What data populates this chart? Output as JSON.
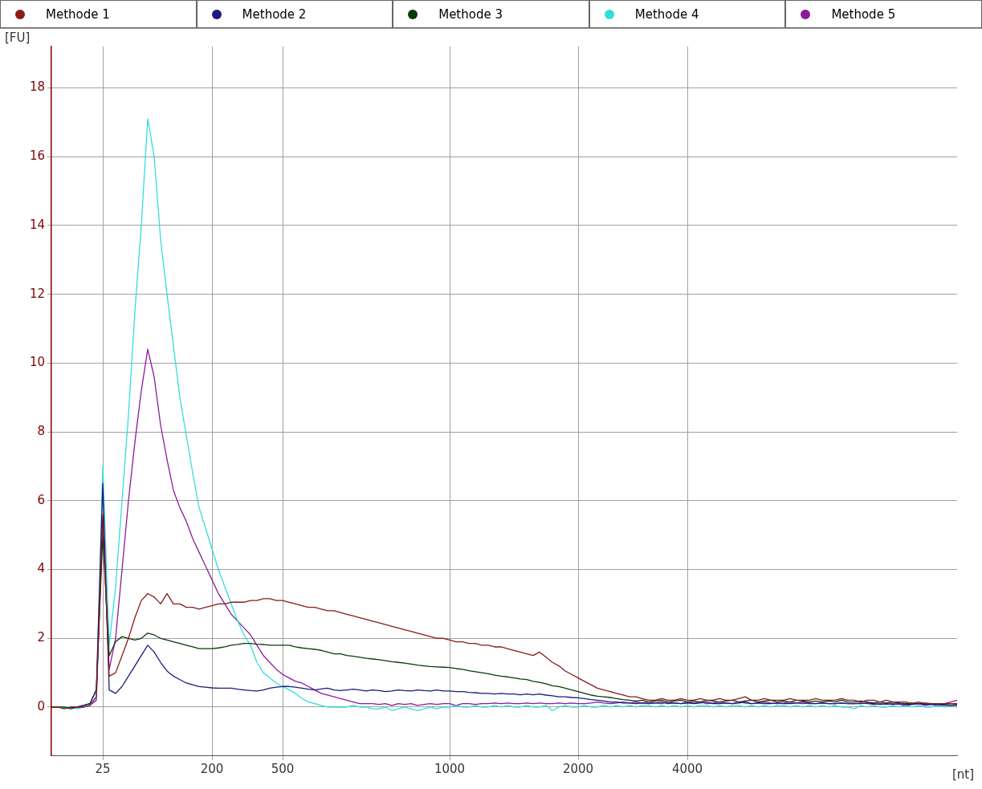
{
  "chart_data": {
    "type": "line",
    "xlabel": "[nt]",
    "ylabel": "[FU]",
    "legend": "top",
    "grid": true,
    "marker": "none",
    "line_style": "solid",
    "ylim": [
      -1.4,
      19.2
    ],
    "yticks": [
      0,
      2,
      4,
      6,
      8,
      10,
      12,
      14,
      16,
      18
    ],
    "categories": [
      null,
      null,
      null,
      null,
      null,
      null,
      null,
      null,
      "25",
      null,
      null,
      null,
      null,
      null,
      null,
      null,
      null,
      null,
      null,
      null,
      null,
      null,
      null,
      null,
      null,
      "200",
      null,
      null,
      null,
      null,
      null,
      null,
      null,
      null,
      null,
      null,
      "500",
      null,
      null,
      null,
      null,
      null,
      null,
      null,
      null,
      null,
      null,
      null,
      null,
      null,
      null,
      null,
      null,
      null,
      null,
      null,
      null,
      null,
      null,
      null,
      null,
      null,
      "1000",
      null,
      null,
      null,
      null,
      null,
      null,
      null,
      null,
      null,
      null,
      null,
      null,
      null,
      null,
      null,
      null,
      null,
      null,
      null,
      "2000",
      null,
      null,
      null,
      null,
      null,
      null,
      null,
      null,
      null,
      null,
      null,
      null,
      null,
      null,
      null,
      null,
      "4000",
      null,
      null,
      null,
      null,
      null,
      null,
      null,
      null,
      null,
      null,
      null,
      null,
      null,
      null,
      null,
      null,
      null,
      null,
      null,
      null,
      null,
      null,
      null,
      null,
      null,
      null,
      null,
      null,
      null,
      null,
      null,
      null,
      null,
      null,
      null,
      null,
      null,
      null,
      null,
      null,
      null,
      null
    ],
    "series": [
      {
        "name": "Methode 1",
        "color": "#8b1a1a",
        "values": [
          0,
          0,
          -0.05,
          0,
          0,
          0,
          0.05,
          0.3,
          5.6,
          0.9,
          1,
          1.5,
          2,
          2.6,
          3.1,
          3.3,
          3.2,
          3,
          3.3,
          3,
          3,
          2.9,
          2.9,
          2.85,
          2.9,
          2.95,
          3,
          3,
          3.05,
          3.05,
          3.05,
          3.1,
          3.1,
          3.15,
          3.15,
          3.1,
          3.1,
          3.05,
          3,
          2.95,
          2.9,
          2.9,
          2.85,
          2.8,
          2.8,
          2.75,
          2.7,
          2.65,
          2.6,
          2.55,
          2.5,
          2.45,
          2.4,
          2.35,
          2.3,
          2.25,
          2.2,
          2.15,
          2.1,
          2.05,
          2,
          2,
          1.95,
          1.9,
          1.9,
          1.85,
          1.85,
          1.8,
          1.8,
          1.75,
          1.75,
          1.7,
          1.65,
          1.6,
          1.55,
          1.5,
          1.6,
          1.45,
          1.3,
          1.2,
          1.05,
          0.95,
          0.85,
          0.75,
          0.65,
          0.55,
          0.5,
          0.45,
          0.4,
          0.35,
          0.3,
          0.3,
          0.25,
          0.2,
          0.2,
          0.25,
          0.2,
          0.2,
          0.25,
          0.2,
          0.2,
          0.25,
          0.2,
          0.2,
          0.25,
          0.2,
          0.2,
          0.25,
          0.3,
          0.2,
          0.2,
          0.25,
          0.2,
          0.2,
          0.2,
          0.25,
          0.2,
          0.2,
          0.2,
          0.25,
          0.2,
          0.2,
          0.2,
          0.25,
          0.2,
          0.2,
          0.15,
          0.2,
          0.2,
          0.15,
          0.2,
          0.15,
          0.15,
          0.15,
          0.1,
          0.15,
          0.1,
          0.1,
          0.1,
          0.1,
          0.1,
          0.1
        ]
      },
      {
        "name": "Methode 2",
        "color": "#1a1a80",
        "values": [
          null,
          null,
          null,
          0,
          0,
          0.05,
          0.1,
          0.5,
          6.5,
          0.5,
          0.4,
          0.6,
          0.9,
          1.2,
          1.5,
          1.8,
          1.6,
          1.3,
          1.05,
          0.9,
          0.8,
          0.7,
          0.65,
          0.6,
          0.58,
          0.56,
          0.55,
          0.55,
          0.55,
          0.52,
          0.5,
          0.48,
          0.47,
          0.5,
          0.55,
          0.58,
          0.6,
          0.6,
          0.58,
          0.55,
          0.52,
          0.5,
          0.53,
          0.55,
          0.5,
          0.48,
          0.5,
          0.52,
          0.5,
          0.47,
          0.5,
          0.48,
          0.45,
          0.47,
          0.5,
          0.48,
          0.47,
          0.5,
          0.48,
          0.47,
          0.5,
          0.47,
          0.47,
          0.45,
          0.45,
          0.43,
          0.42,
          0.4,
          0.4,
          0.38,
          0.4,
          0.38,
          0.38,
          0.36,
          0.38,
          0.36,
          0.38,
          0.35,
          0.33,
          0.3,
          0.3,
          0.28,
          0.27,
          0.25,
          0.22,
          0.2,
          0.18,
          0.15,
          0.15,
          0.12,
          0.12,
          0.1,
          0.12,
          0.1,
          0.12,
          0.15,
          0.1,
          0.12,
          0.1,
          0.12,
          0.1,
          0.12,
          0.15,
          0.1,
          0.1,
          0.12,
          0.1,
          0.12,
          0.15,
          0.1,
          0.12,
          0.1,
          0.1,
          0.12,
          0.1,
          0.1,
          0.12,
          0.15,
          0.1,
          0.1,
          0.12,
          0.1,
          0.1,
          0.12,
          0.1,
          0.1,
          0.1,
          0.12,
          0.1,
          0.08,
          0.1,
          0.08,
          0.1,
          0.08,
          0.08,
          0.1,
          0.08,
          0.08,
          0.08,
          0.05,
          0.05,
          0.05
        ]
      },
      {
        "name": "Methode 3",
        "color": "#0a3a0a",
        "values": [
          0,
          0,
          0,
          -0.05,
          0,
          0.05,
          0.1,
          0.5,
          5,
          1.5,
          1.9,
          2.05,
          2,
          1.95,
          2,
          2.15,
          2.1,
          2,
          1.95,
          1.9,
          1.85,
          1.8,
          1.75,
          1.7,
          1.7,
          1.7,
          1.72,
          1.75,
          1.8,
          1.82,
          1.85,
          1.85,
          1.83,
          1.82,
          1.8,
          1.8,
          1.8,
          1.8,
          1.75,
          1.72,
          1.7,
          1.68,
          1.65,
          1.6,
          1.55,
          1.55,
          1.5,
          1.48,
          1.45,
          1.42,
          1.4,
          1.38,
          1.35,
          1.32,
          1.3,
          1.28,
          1.25,
          1.22,
          1.2,
          1.18,
          1.17,
          1.16,
          1.15,
          1.12,
          1.1,
          1.06,
          1.03,
          1,
          0.97,
          0.93,
          0.9,
          0.88,
          0.85,
          0.82,
          0.8,
          0.75,
          0.72,
          0.68,
          0.62,
          0.6,
          0.55,
          0.5,
          0.45,
          0.4,
          0.35,
          0.32,
          0.3,
          0.28,
          0.25,
          0.22,
          0.2,
          0.18,
          0.2,
          0.15,
          0.18,
          0.2,
          0.15,
          0.18,
          0.2,
          0.15,
          0.18,
          0.15,
          0.2,
          0.18,
          0.15,
          0.18,
          0.2,
          0.15,
          0.18,
          0.2,
          0.15,
          0.18,
          0.2,
          0.15,
          0.18,
          0.15,
          0.2,
          0.18,
          0.15,
          0.18,
          0.15,
          0.18,
          0.15,
          0.2,
          0.15,
          0.15,
          0.18,
          0.15,
          0.12,
          0.15,
          0.12,
          0.15,
          0.12,
          0.1,
          0.12,
          0.1,
          0.12,
          0.1,
          0.1,
          0.08,
          0.1,
          0.08
        ]
      },
      {
        "name": "Methode 4",
        "color": "#33dddd",
        "values": [
          null,
          null,
          0,
          0,
          -0.05,
          0,
          0.05,
          0.3,
          7,
          1.8,
          3.5,
          6,
          8.5,
          11.5,
          14,
          17.1,
          16,
          13.6,
          12,
          10.5,
          9,
          7.9,
          6.8,
          5.8,
          5.2,
          4.6,
          4,
          3.5,
          3,
          2.5,
          2.1,
          1.8,
          1.3,
          1,
          0.85,
          0.7,
          0.6,
          0.5,
          0.4,
          0.25,
          0.15,
          0.1,
          0.05,
          0,
          0,
          0,
          0,
          0.05,
          0,
          0,
          -0.05,
          -0.05,
          0,
          -0.1,
          -0.05,
          0,
          -0.05,
          -0.1,
          -0.05,
          0,
          -0.05,
          0,
          0,
          0.05,
          0,
          0,
          0.05,
          0,
          0,
          0.05,
          0,
          0.05,
          0,
          0,
          0.05,
          0,
          0,
          0.05,
          -0.1,
          0,
          0.05,
          0,
          0,
          0.05,
          0,
          0,
          0.05,
          0,
          0.05,
          0,
          0.05,
          0,
          0.05,
          0.05,
          0,
          0.05,
          0,
          0.05,
          0,
          0.05,
          0,
          0.05,
          0.05,
          0,
          0.05,
          0,
          0.05,
          0.05,
          0,
          0.05,
          0,
          0.05,
          0,
          0.05,
          0.05,
          0,
          0.05,
          0,
          0.05,
          0,
          0.05,
          0,
          0.05,
          0,
          0,
          -0.05,
          0.05,
          0,
          0.05,
          0,
          0,
          0.05,
          0,
          0.05,
          0,
          0.05,
          0,
          0,
          0.05,
          0,
          0.05,
          0
        ]
      },
      {
        "name": "Methode 5",
        "color": "#8b1a9b",
        "values": [
          null,
          null,
          null,
          null,
          0,
          0,
          0.05,
          0.2,
          5.5,
          1.1,
          2,
          4,
          6,
          7.7,
          9.2,
          10.4,
          9.6,
          8.2,
          7.2,
          6.3,
          5.8,
          5.4,
          4.9,
          4.5,
          4.1,
          3.7,
          3.3,
          3,
          2.7,
          2.5,
          2.3,
          2.1,
          1.8,
          1.5,
          1.3,
          1.1,
          0.95,
          0.85,
          0.75,
          0.7,
          0.6,
          0.5,
          0.4,
          0.35,
          0.3,
          0.25,
          0.2,
          0.15,
          0.1,
          0.1,
          0.1,
          0.08,
          0.1,
          0.05,
          0.1,
          0.08,
          0.1,
          0.05,
          0.08,
          0.1,
          0.08,
          0.1,
          0.1,
          0.05,
          0.1,
          0.1,
          0.08,
          0.1,
          0.1,
          0.12,
          0.1,
          0.12,
          0.1,
          0.1,
          0.12,
          0.1,
          0.12,
          0.1,
          0.1,
          0.12,
          0.1,
          0.12,
          0.1,
          0.1,
          0.12,
          0.15,
          0.12,
          0.1,
          0.12,
          0.15,
          0.12,
          0.15,
          0.12,
          0.15,
          0.12,
          0.1,
          0.15,
          0.12,
          0.1,
          0.15,
          0.12,
          0.15,
          0.1,
          0.12,
          0.15,
          0.12,
          0.1,
          0.15,
          0.12,
          0.1,
          0.12,
          0.15,
          0.12,
          0.1,
          0.12,
          0.15,
          0.12,
          0.1,
          0.12,
          0.1,
          0.12,
          0.1,
          0.1,
          0.12,
          0.1,
          0.1,
          0.12,
          0.1,
          0.08,
          0.1,
          0.08,
          0.1,
          0.08,
          0.05,
          0.08,
          0.1,
          0.05,
          0.08,
          0.05,
          0.1,
          0.15,
          0.2
        ]
      }
    ]
  }
}
